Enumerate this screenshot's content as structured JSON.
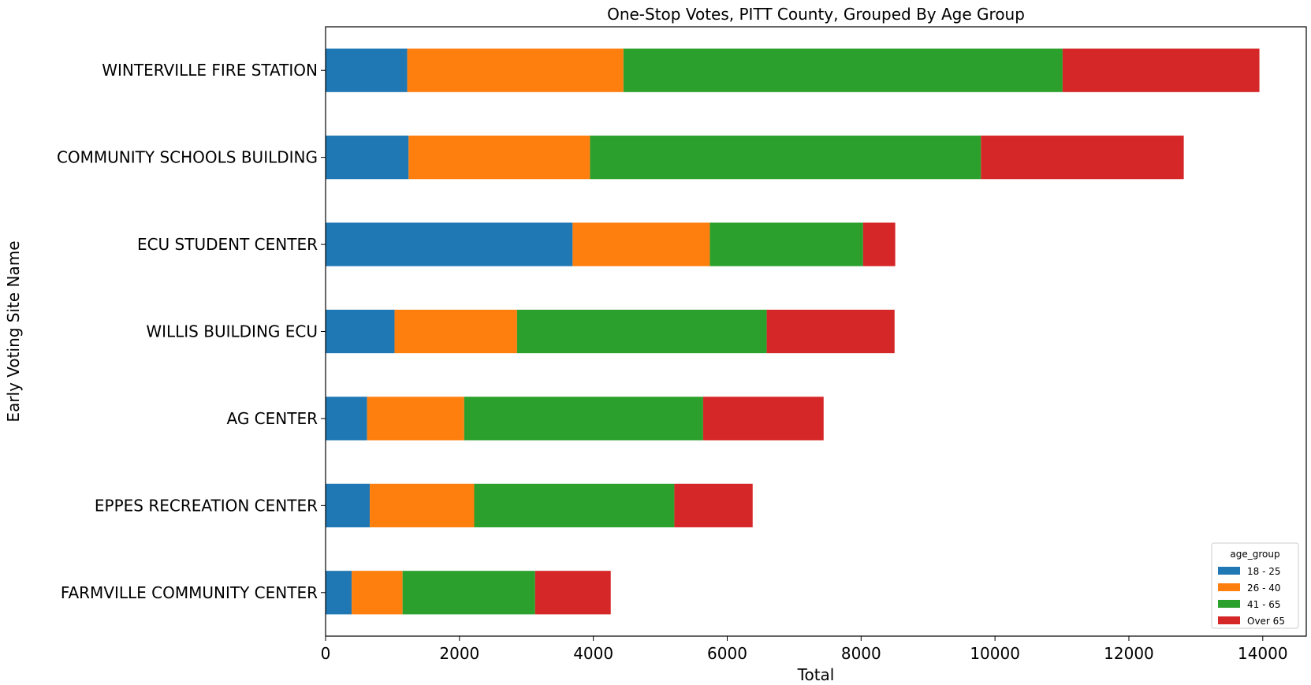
{
  "chart_data": {
    "type": "bar",
    "orientation": "horizontal",
    "stacked": true,
    "title": "One-Stop Votes, PITT County, Grouped By Age Group",
    "xlabel": "Total",
    "ylabel": "Early Voting Site Name",
    "xlim": [
      0,
      14650
    ],
    "xticks": [
      0,
      2000,
      4000,
      6000,
      8000,
      10000,
      12000,
      14000
    ],
    "xtick_labels": [
      "0",
      "2000",
      "4000",
      "6000",
      "8000",
      "10000",
      "12000",
      "14000"
    ],
    "categories": [
      "WINTERVILLE FIRE STATION",
      "COMMUNITY SCHOOLS BUILDING",
      "ECU STUDENT CENTER",
      "WILLIS BUILDING ECU",
      "AG CENTER",
      "EPPES RECREATION CENTER",
      "FARMVILLE COMMUNITY CENTER"
    ],
    "series": [
      {
        "name": "18 - 25",
        "color": "#1f77b4",
        "values": [
          1220,
          1240,
          3690,
          1030,
          620,
          660,
          390
        ]
      },
      {
        "name": "26 - 40",
        "color": "#ff7f0e",
        "values": [
          3230,
          2710,
          2050,
          1830,
          1450,
          1560,
          760
        ]
      },
      {
        "name": "41 - 65",
        "color": "#2ca02c",
        "values": [
          6560,
          5840,
          2290,
          3730,
          3570,
          2990,
          1980
        ]
      },
      {
        "name": "Over 65",
        "color": "#d62728",
        "values": [
          2940,
          3030,
          480,
          1910,
          1800,
          1170,
          1130
        ]
      }
    ],
    "legend": {
      "title": "age_group",
      "location": "lower-right"
    },
    "grid": false
  }
}
